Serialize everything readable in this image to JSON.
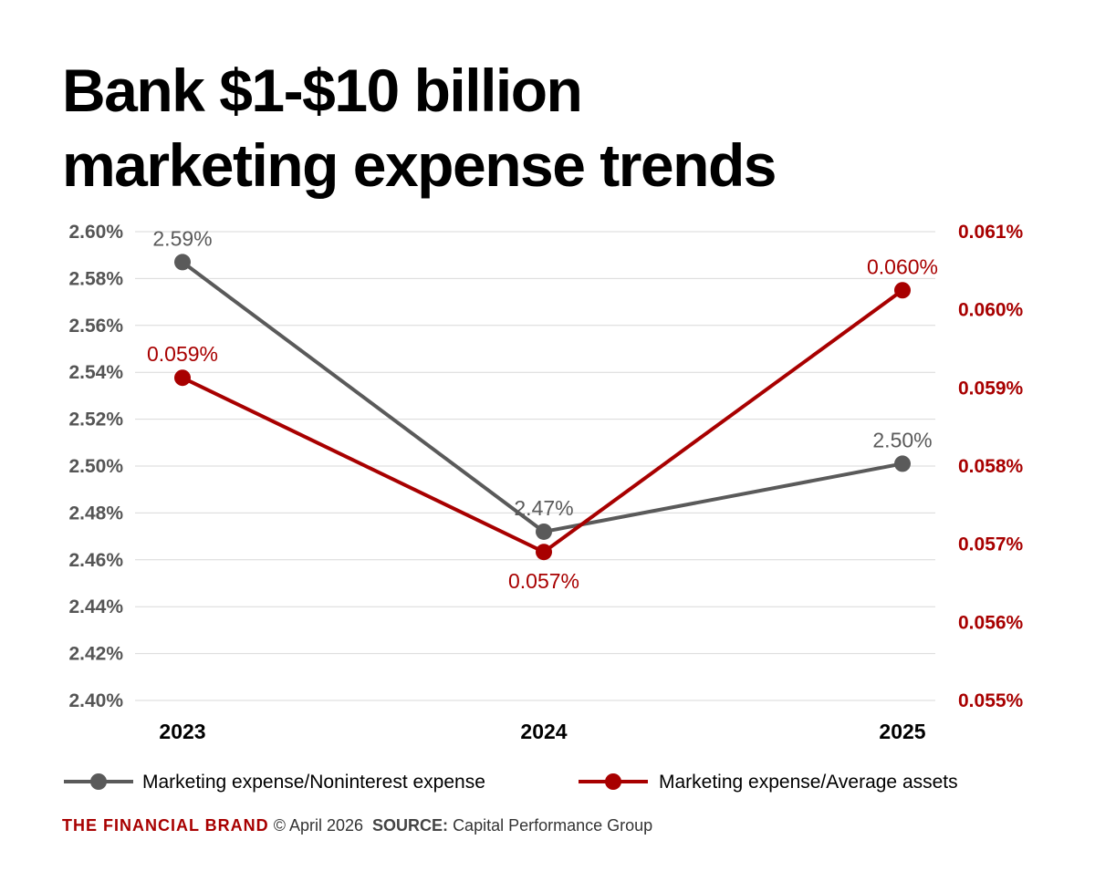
{
  "title_lines": [
    "Bank $1-$10 billion",
    "marketing expense trends"
  ],
  "footer": {
    "brand": "THE FINANCIAL BRAND",
    "copyright": "© April 2026",
    "source_label": "SOURCE:",
    "source": "Capital Performance Group"
  },
  "colors": {
    "series1": "#5a5a5a",
    "series2": "#a80000",
    "grid": "#d9d9d9"
  },
  "chart_data": {
    "type": "line",
    "title": "Bank $1-$10 billion marketing expense trends",
    "categories": [
      "2023",
      "2024",
      "2025"
    ],
    "y_left": {
      "lim": [
        2.4,
        2.6
      ],
      "ticks": [
        2.4,
        2.42,
        2.44,
        2.46,
        2.48,
        2.5,
        2.52,
        2.54,
        2.56,
        2.58,
        2.6
      ],
      "tick_labels": [
        "2.40%",
        "2.42%",
        "2.44%",
        "2.46%",
        "2.48%",
        "2.50%",
        "2.52%",
        "2.54%",
        "2.56%",
        "2.58%",
        "2.60%"
      ]
    },
    "y_right": {
      "lim": [
        0.055,
        0.061
      ],
      "ticks": [
        0.055,
        0.056,
        0.057,
        0.058,
        0.059,
        0.06,
        0.061
      ],
      "tick_labels": [
        "0.055%",
        "0.056%",
        "0.057%",
        "0.058%",
        "0.059%",
        "0.060%",
        "0.061%"
      ]
    },
    "grid": true,
    "legend": "bottom",
    "series": [
      {
        "name": "Marketing expense/Noninterest expense",
        "axis": "left",
        "values": [
          2.587,
          2.472,
          2.501
        ],
        "labels": [
          "2.59%",
          "2.47%",
          "2.50%"
        ]
      },
      {
        "name": "Marketing expense/Average assets",
        "axis": "right",
        "values": [
          0.05913,
          0.0569,
          0.06025
        ],
        "labels": [
          "0.059%",
          "0.057%",
          "0.060%"
        ]
      }
    ]
  }
}
